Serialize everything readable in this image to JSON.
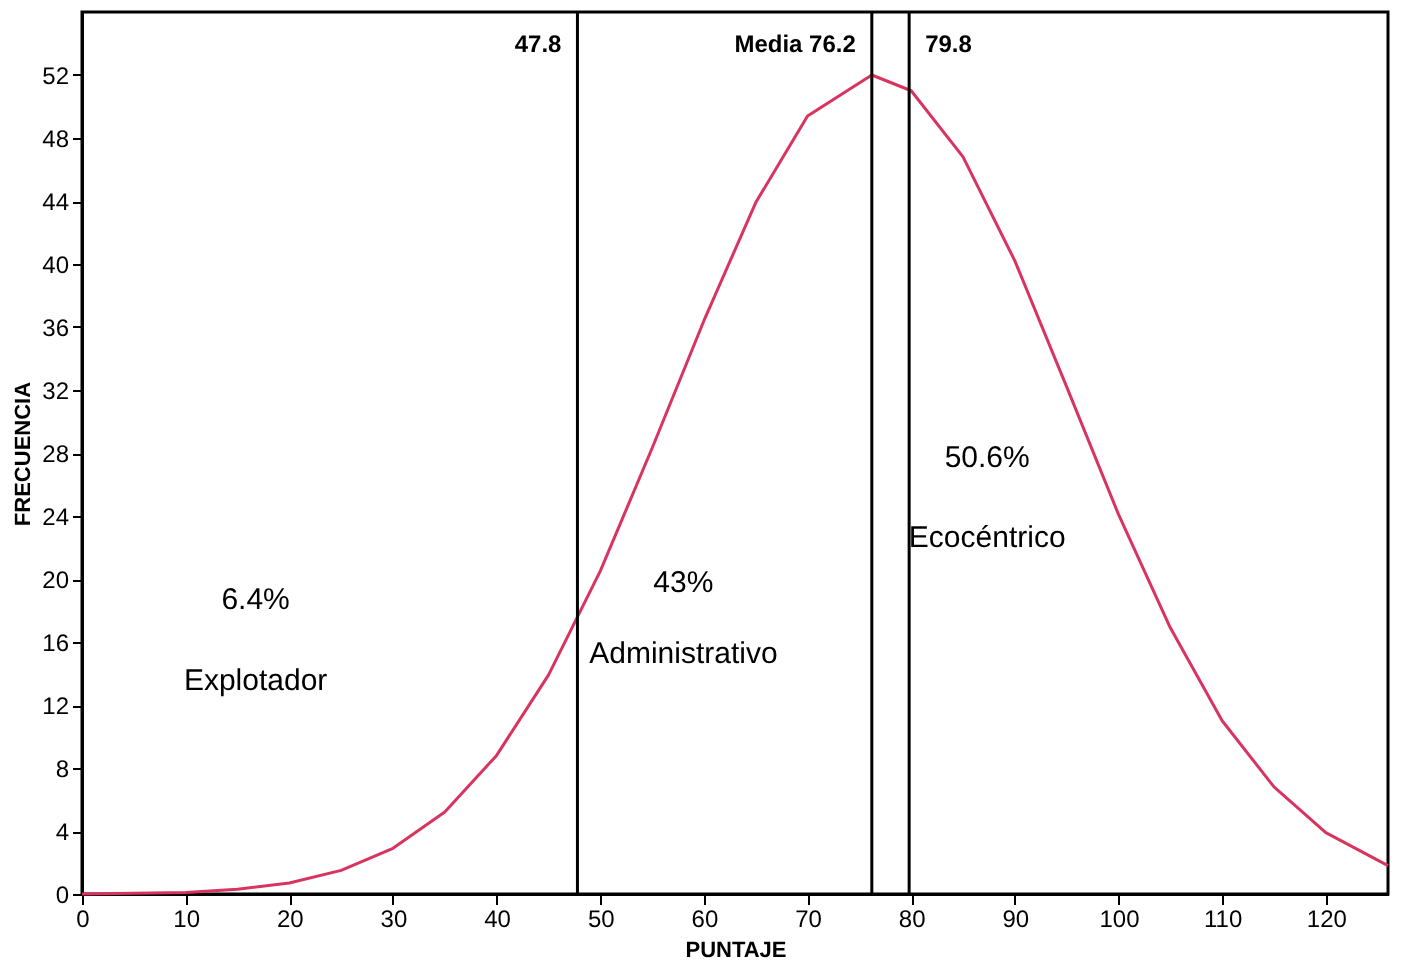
{
  "chart_data": {
    "type": "line",
    "xlabel": "PUNTAJE",
    "ylabel": "FRECUENCIA",
    "x": [
      0,
      10,
      15,
      20,
      25,
      30,
      35,
      40,
      45,
      50,
      55,
      60,
      65,
      70,
      76.2,
      80,
      85,
      90,
      95,
      100,
      105,
      110,
      115,
      120,
      126
    ],
    "series": [
      {
        "color": "#d8345f",
        "values": [
          0.0,
          0.1,
          0.3,
          0.7,
          1.5,
          2.9,
          5.2,
          8.8,
          13.9,
          20.5,
          28.3,
          36.4,
          43.9,
          49.4,
          52,
          51.0,
          46.8,
          40.2,
          32.2,
          24.1,
          16.9,
          11.0,
          6.8,
          3.9,
          1.8
        ]
      }
    ],
    "xlim": [
      0,
      126
    ],
    "ylim": [
      0,
      56
    ],
    "xticks": [
      0,
      10,
      20,
      30,
      40,
      50,
      60,
      70,
      80,
      90,
      100,
      110,
      120
    ],
    "yticks": [
      0,
      4,
      8,
      12,
      16,
      20,
      24,
      28,
      32,
      36,
      40,
      44,
      48,
      52
    ],
    "grid": false,
    "ref_lines": [
      {
        "axis": "x",
        "value": 47.8,
        "label": "47.8",
        "color": "#000000"
      },
      {
        "axis": "x",
        "value": 76.2,
        "label": "Media  76.2",
        "color": "#000000"
      },
      {
        "axis": "x",
        "value": 79.8,
        "label": "79.8",
        "color": "#000000"
      }
    ],
    "annotations": [
      "6.4%",
      "Explotador",
      "43%",
      "Administrativo",
      "50.6%",
      "Ecocéntrico"
    ]
  }
}
